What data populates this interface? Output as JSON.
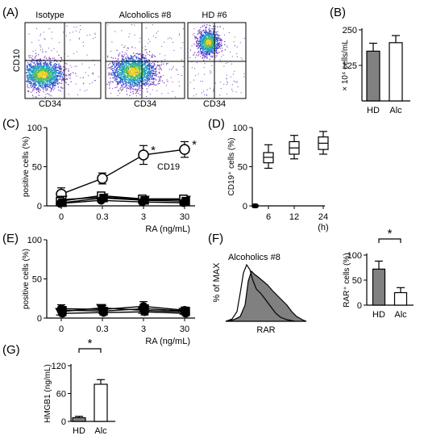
{
  "panels": {
    "A": {
      "label": "(A)"
    },
    "B": {
      "label": "(B)"
    },
    "C": {
      "label": "(C)"
    },
    "D": {
      "label": "(D)"
    },
    "E": {
      "label": "(E)"
    },
    "F": {
      "label": "(F)"
    },
    "G": {
      "label": "(G)"
    }
  },
  "flow": {
    "titles": [
      "Isotype",
      "Alcoholics #8",
      "HD #6"
    ],
    "xlabel": "CD34",
    "ylabel": "CD10"
  },
  "rar_histogram": {
    "title": "Alcoholics #8",
    "xlabel": "RAR",
    "ylabel": "% of MAX"
  },
  "chart_data": [
    {
      "id": "B",
      "type": "bar",
      "categories": [
        "HD",
        "Alc"
      ],
      "values": [
        175,
        205
      ],
      "errors": [
        28,
        25
      ],
      "fill": [
        "#808080",
        "#ffffff"
      ],
      "yticks": [
        125,
        250
      ],
      "ylim": [
        0,
        250
      ],
      "ylabel": "× 10⁴ cells/mL"
    },
    {
      "id": "C",
      "type": "line",
      "x": [
        "0",
        "0.3",
        "3",
        "30"
      ],
      "xlabel": "RA (ng/mL)",
      "ylabel": "positive cells (%)",
      "yticks": [
        0,
        50,
        100
      ],
      "ylim": [
        0,
        100
      ],
      "annotation": "CD19",
      "star": "*",
      "series": [
        {
          "marker": "circle-open",
          "values": [
            15,
            35,
            65,
            72
          ],
          "errors": [
            8,
            7,
            12,
            10
          ],
          "stars": [
            false,
            false,
            true,
            true
          ]
        },
        {
          "marker": "triangle-down-open",
          "values": [
            8,
            11,
            8,
            8
          ],
          "errors": [
            4,
            3,
            3,
            3
          ]
        },
        {
          "marker": "square-open",
          "values": [
            6,
            13,
            9,
            9
          ],
          "errors": [
            3,
            3,
            3,
            2
          ]
        },
        {
          "marker": "square-filled",
          "values": [
            4,
            10,
            7,
            6
          ],
          "errors": [
            2,
            3,
            2,
            2
          ]
        },
        {
          "marker": "circle-filled",
          "values": [
            3,
            7,
            5,
            4
          ],
          "errors": [
            2,
            2,
            2,
            2
          ]
        }
      ]
    },
    {
      "id": "D",
      "type": "box",
      "x": [
        "6",
        "12",
        "24"
      ],
      "xunit": "(h)",
      "ylabel": "CD19⁺ cells (%)",
      "yticks": [
        0,
        50,
        100
      ],
      "ylim": [
        0,
        100
      ],
      "boxes": [
        {
          "min": 48,
          "q1": 55,
          "median": 62,
          "q3": 68,
          "max": 78
        },
        {
          "min": 60,
          "q1": 66,
          "median": 74,
          "q3": 82,
          "max": 90
        },
        {
          "min": 66,
          "q1": 72,
          "median": 80,
          "q3": 88,
          "max": 95
        }
      ]
    },
    {
      "id": "E",
      "type": "line",
      "x": [
        "0",
        "0.3",
        "3",
        "30"
      ],
      "xlabel": "RA (ng/mL)",
      "ylabel": "positive cells (%)",
      "yticks": [
        0,
        50,
        100
      ],
      "ylim": [
        0,
        100
      ],
      "series": [
        {
          "marker": "circle-filled",
          "values": [
            12,
            11,
            15,
            10
          ],
          "errors": [
            5,
            5,
            6,
            4
          ]
        },
        {
          "marker": "square-filled",
          "values": [
            10,
            9,
            12,
            9
          ],
          "errors": [
            4,
            4,
            5,
            4
          ]
        },
        {
          "marker": "triangle-down-filled",
          "values": [
            8,
            13,
            10,
            8
          ],
          "errors": [
            4,
            4,
            4,
            3
          ]
        },
        {
          "marker": "circle-filled",
          "values": [
            6,
            7,
            8,
            6
          ],
          "errors": [
            3,
            3,
            4,
            3
          ]
        }
      ]
    },
    {
      "id": "F",
      "type": "bar",
      "categories": [
        "HD",
        "Alc"
      ],
      "values": [
        72,
        25
      ],
      "errors": [
        16,
        10
      ],
      "fill": [
        "#808080",
        "#ffffff"
      ],
      "yticks": [
        0,
        50,
        100
      ],
      "ylim": [
        0,
        100
      ],
      "ylabel": "RAR⁺ cells (%)",
      "sig": "*"
    },
    {
      "id": "G",
      "type": "bar",
      "categories": [
        "HD",
        "Alc"
      ],
      "values": [
        8,
        80
      ],
      "errors": [
        3,
        10
      ],
      "fill": [
        "#808080",
        "#ffffff"
      ],
      "yticks": [
        0,
        60,
        120
      ],
      "ylim": [
        0,
        120
      ],
      "ylabel": "HMGB1 (ng/mL)",
      "sig": "*"
    }
  ]
}
